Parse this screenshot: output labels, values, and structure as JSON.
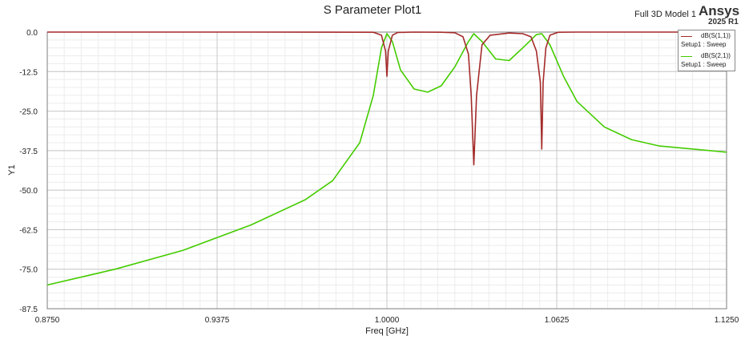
{
  "header": {
    "title": "S Parameter Plot1",
    "model": "Full 3D Model 1",
    "brand": "Ansys",
    "release": "2025 R1"
  },
  "chart_data": {
    "type": "line",
    "title": "S Parameter Plot1",
    "xlabel": "Freq [GHz]",
    "ylabel": "Y1",
    "xlim": [
      0.875,
      1.125
    ],
    "ylim": [
      -87.5,
      0.0
    ],
    "x_ticks": [
      "0.8750",
      "0.9375",
      "1.0000",
      "1.0625",
      "1.1250"
    ],
    "y_ticks": [
      "0.0",
      "-12.5",
      "-25.0",
      "-37.5",
      "-50.0",
      "-62.5",
      "-75.0",
      "-87.5"
    ],
    "grid": true,
    "legend_position": "top-right",
    "series": [
      {
        "name": "dB(S(1,1))",
        "sub": "Setup1 : Sweep",
        "color": "#a52a2a",
        "x": [
          0.875,
          0.95,
          0.995,
          0.998,
          0.9995,
          1.0,
          1.0005,
          1.002,
          1.004,
          1.01,
          1.02,
          1.025,
          1.028,
          1.03,
          1.031,
          1.032,
          1.033,
          1.035,
          1.038,
          1.045,
          1.05,
          1.053,
          1.055,
          1.0565,
          1.057,
          1.0575,
          1.0585,
          1.06,
          1.063,
          1.07,
          1.125
        ],
        "y": [
          0.0,
          0.0,
          -0.05,
          -1.0,
          -6.0,
          -14.0,
          -6.0,
          -1.0,
          -0.1,
          0.0,
          -0.05,
          -0.2,
          -1.5,
          -7.0,
          -20.0,
          -42.0,
          -20.0,
          -4.0,
          -1.0,
          -0.3,
          -0.5,
          -1.5,
          -6.0,
          -16.0,
          -37.0,
          -16.0,
          -5.0,
          -1.0,
          -0.05,
          0.0,
          0.0
        ]
      },
      {
        "name": "dB(S(2,1))",
        "sub": "Setup1 : Sweep",
        "color": "#44cc00",
        "x": [
          0.875,
          0.9,
          0.925,
          0.95,
          0.97,
          0.98,
          0.99,
          0.995,
          0.998,
          1.0,
          1.002,
          1.005,
          1.01,
          1.015,
          1.02,
          1.025,
          1.03,
          1.032,
          1.035,
          1.04,
          1.045,
          1.05,
          1.055,
          1.057,
          1.06,
          1.065,
          1.07,
          1.08,
          1.09,
          1.1,
          1.125
        ],
        "y": [
          -80.0,
          -75.0,
          -69.0,
          -61.0,
          -53.0,
          -47.0,
          -35.0,
          -20.0,
          -5.0,
          -0.5,
          -3.0,
          -12.0,
          -18.0,
          -19.0,
          -17.0,
          -11.0,
          -3.0,
          -0.5,
          -3.0,
          -8.5,
          -9.0,
          -5.0,
          -0.8,
          -0.5,
          -4.0,
          -14.0,
          -22.0,
          -30.0,
          -34.0,
          -36.0,
          -38.0
        ]
      }
    ]
  }
}
